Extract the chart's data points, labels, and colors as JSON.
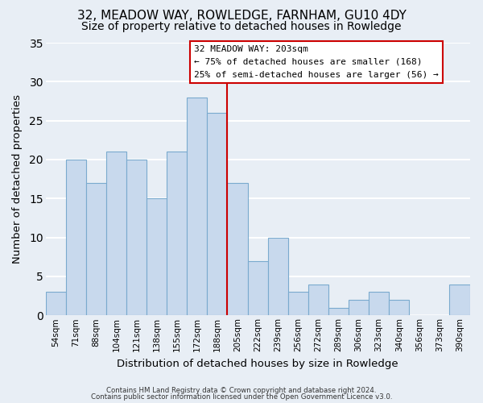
{
  "title": "32, MEADOW WAY, ROWLEDGE, FARNHAM, GU10 4DY",
  "subtitle": "Size of property relative to detached houses in Rowledge",
  "xlabel": "Distribution of detached houses by size in Rowledge",
  "ylabel": "Number of detached properties",
  "bar_labels": [
    "54sqm",
    "71sqm",
    "88sqm",
    "104sqm",
    "121sqm",
    "138sqm",
    "155sqm",
    "172sqm",
    "188sqm",
    "205sqm",
    "222sqm",
    "239sqm",
    "256sqm",
    "272sqm",
    "289sqm",
    "306sqm",
    "323sqm",
    "340sqm",
    "356sqm",
    "373sqm",
    "390sqm"
  ],
  "bar_values": [
    3,
    20,
    17,
    21,
    20,
    15,
    21,
    28,
    26,
    17,
    7,
    10,
    3,
    4,
    1,
    2,
    3,
    2,
    0,
    0,
    4
  ],
  "bar_color": "#c8d9ed",
  "bar_edge_color": "#7aaace",
  "ylim": [
    0,
    35
  ],
  "yticks": [
    0,
    5,
    10,
    15,
    20,
    25,
    30,
    35
  ],
  "vline_color": "#cc0000",
  "annotation_title": "32 MEADOW WAY: 203sqm",
  "annotation_line1": "← 75% of detached houses are smaller (168)",
  "annotation_line2": "25% of semi-detached houses are larger (56) →",
  "annotation_box_color": "#ffffff",
  "annotation_box_edge": "#cc0000",
  "footer1": "Contains HM Land Registry data © Crown copyright and database right 2024.",
  "footer2": "Contains public sector information licensed under the Open Government Licence v3.0.",
  "background_color": "#e8eef5",
  "grid_color": "#ffffff",
  "title_fontsize": 11,
  "subtitle_fontsize": 10
}
